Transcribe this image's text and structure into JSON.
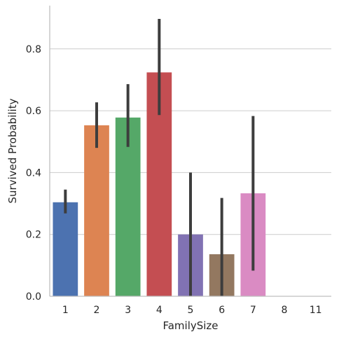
{
  "chart_data": {
    "type": "bar",
    "title": "",
    "xlabel": "FamilySize",
    "ylabel": "Survived Probability",
    "categories": [
      "1",
      "2",
      "3",
      "4",
      "5",
      "6",
      "7",
      "8",
      "11"
    ],
    "values": [
      0.304,
      0.553,
      0.578,
      0.724,
      0.2,
      0.136,
      0.333,
      0.0,
      0.0
    ],
    "error_bars": {
      "low": [
        0.268,
        0.48,
        0.483,
        0.586,
        0.0,
        0.0,
        0.083,
        0.0,
        0.0
      ],
      "high": [
        0.345,
        0.627,
        0.686,
        0.897,
        0.4,
        0.318,
        0.583,
        0.0,
        0.0
      ]
    },
    "colors": [
      "#4c72b0",
      "#dd8452",
      "#55a868",
      "#c44e52",
      "#8172b3",
      "#937860",
      "#da8bc3",
      "#8c8c8c",
      "#ccb974"
    ],
    "ylim": [
      0,
      0.94
    ],
    "yticks": [
      0.0,
      0.2,
      0.4,
      0.6,
      0.8
    ],
    "ytick_labels": [
      "0.0",
      "0.2",
      "0.4",
      "0.6",
      "0.8"
    ],
    "grid": true,
    "legend": "none"
  }
}
